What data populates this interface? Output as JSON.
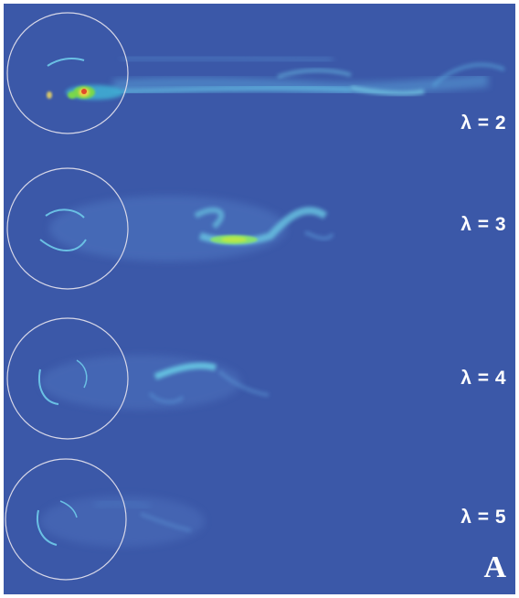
{
  "figure": {
    "letter": "A",
    "background_color": "#3b58a8"
  },
  "panels": [
    {
      "label": "λ = 2"
    },
    {
      "label": "λ = 3"
    },
    {
      "label": "λ = 4"
    },
    {
      "label": "λ = 5"
    }
  ]
}
